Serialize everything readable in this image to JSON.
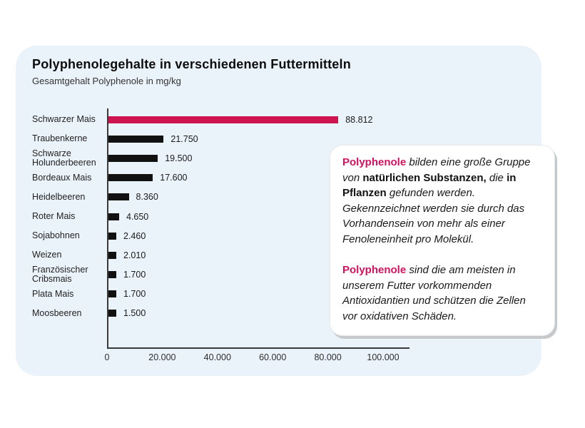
{
  "card": {
    "title": "Polyphenolegehalte in verschiedenen Futtermitteln",
    "subtitle": "Gesamtgehalt Polyphenole in mg/kg"
  },
  "chart_data": {
    "type": "bar",
    "orientation": "horizontal",
    "title": "Polyphenolegehalte in verschiedenen Futtermitteln",
    "xlabel": "Gesamtgehalt Polyphenole in mg/kg",
    "ylabel": "",
    "categories": [
      "Schwarzer Mais",
      "Traubenkerne",
      "Schwarze\nHolunderbeeren",
      "Bordeaux Mais",
      "Heidelbeeren",
      "Roter Mais",
      "Sojabohnen",
      "Weizen",
      "Französischer\nCribsmais",
      "Plata Mais",
      "Moosbeeren"
    ],
    "values": [
      88812,
      21750,
      19500,
      17600,
      8360,
      4650,
      2460,
      2010,
      1700,
      1700,
      1500
    ],
    "value_labels": [
      "88.812",
      "21.750",
      "19.500",
      "17.600",
      "8.360",
      "4.650",
      "2.460",
      "2.010",
      "1.700",
      "1.700",
      "1.500"
    ],
    "x_ticks": [
      "0",
      "20.000",
      "40.000",
      "60.000",
      "80.000",
      "100.000"
    ],
    "x_tick_values": [
      0,
      20000,
      40000,
      60000,
      80000,
      100000
    ],
    "xlim": [
      0,
      100000
    ],
    "grid": false,
    "legend": false,
    "highlight_index": 0
  },
  "infobox": {
    "paragraphs": [
      {
        "runs": [
          {
            "text": "Polyphenole",
            "style": "accent"
          },
          {
            "text": " bilden eine große Gruppe von ",
            "style": "italic"
          },
          {
            "text": "natürlichen Substanzen,",
            "style": "bold"
          },
          {
            "text": " die ",
            "style": "italic"
          },
          {
            "text": "in Pflanzen",
            "style": "bold"
          },
          {
            "text": " gefunden werden. Gekennzeichnet werden sie durch das Vorhandensein von mehr als einer Fenoleneinheit pro Molekül.",
            "style": "italic"
          }
        ]
      },
      {
        "runs": [
          {
            "text": "Polyphenole",
            "style": "accent"
          },
          {
            "text": " sind die am meisten in unserem Futter vorkommenden Antioxidantien und schützen die Zellen vor oxidativen Schäden.",
            "style": "italic"
          }
        ]
      }
    ]
  },
  "colors": {
    "accent_text": "#d8115f",
    "bar_highlight": "#cd1450",
    "bar_default": "#111111",
    "card_bg": "#eaf3fa",
    "axis": "#3a3a3a",
    "page_bg": "#ffffff"
  }
}
